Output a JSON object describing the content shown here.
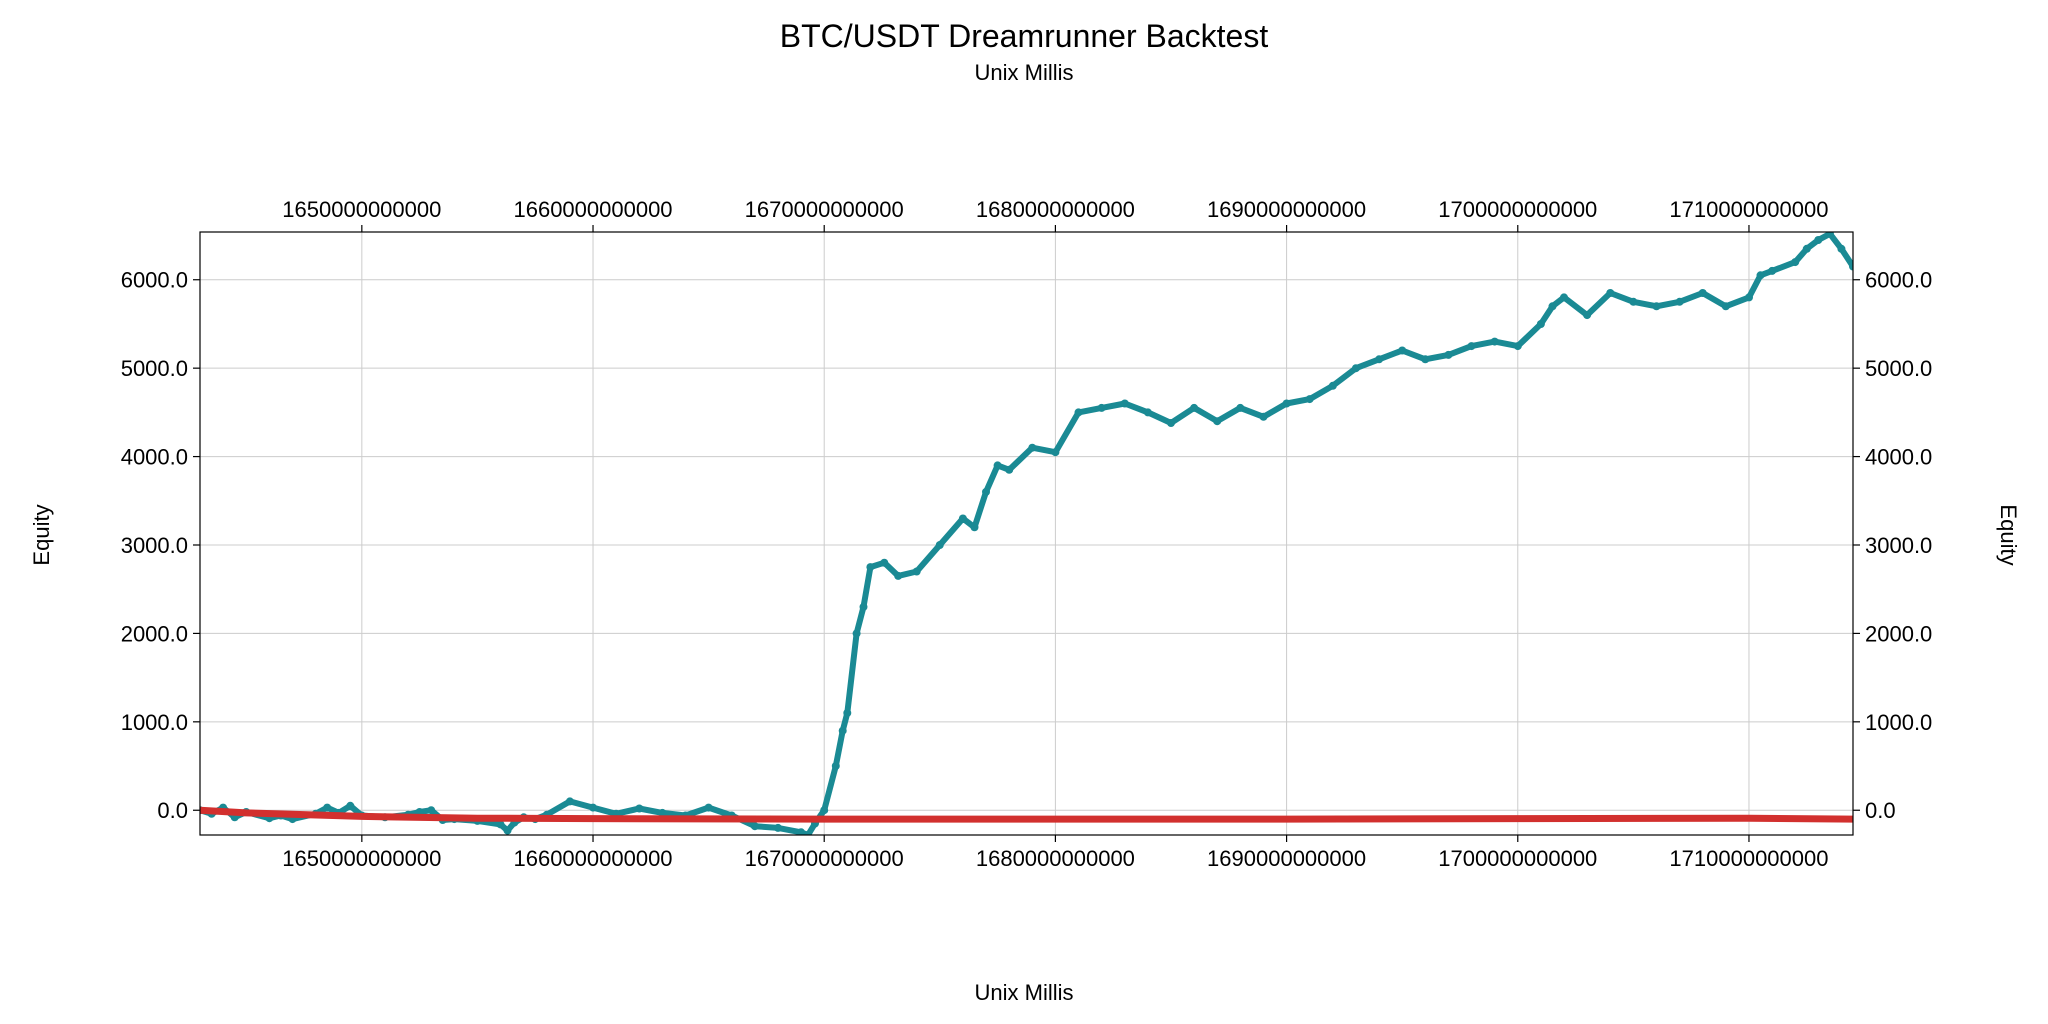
{
  "chart_data": {
    "type": "line",
    "title": "BTC/USDT Dreamrunner Backtest",
    "subtitle": "Unix Millis",
    "xlabel": "Unix Millis",
    "ylabel_left": "Equity",
    "ylabel_right": "Equity",
    "xlim": [
      1643000000000,
      1714500000000
    ],
    "ylim": [
      -280,
      6540
    ],
    "x_ticks": [
      1650000000000,
      1660000000000,
      1670000000000,
      1680000000000,
      1690000000000,
      1700000000000,
      1710000000000
    ],
    "x_tick_labels": [
      "1650000000000",
      "1660000000000",
      "1670000000000",
      "1680000000000",
      "1690000000000",
      "1700000000000",
      "1710000000000"
    ],
    "y_ticks": [
      0,
      1000,
      2000,
      3000,
      4000,
      5000,
      6000
    ],
    "y_tick_labels": [
      "0.0",
      "1000.0",
      "2000.0",
      "3000.0",
      "4000.0",
      "5000.0",
      "6000.0"
    ],
    "grid": true,
    "colors": {
      "equity": "#1a8a94",
      "baseline": "#d2302e",
      "grid": "#cccccc",
      "frame": "#000000"
    },
    "series": [
      {
        "name": "",
        "color": "#1a8a94",
        "style": "dots",
        "x": [
          1643000000000,
          1643500000000,
          1644000000000,
          1644500000000,
          1645000000000,
          1646000000000,
          1646500000000,
          1647000000000,
          1648000000000,
          1648500000000,
          1649000000000,
          1649500000000,
          1650000000000,
          1651000000000,
          1652000000000,
          1652500000000,
          1653000000000,
          1653500000000,
          1654000000000,
          1655000000000,
          1656000000000,
          1656300000000,
          1656600000000,
          1657000000000,
          1657500000000,
          1658000000000,
          1659000000000,
          1660000000000,
          1661000000000,
          1662000000000,
          1663000000000,
          1664000000000,
          1665000000000,
          1666000000000,
          1667000000000,
          1668000000000,
          1669000000000,
          1669300000000,
          1669600000000,
          1670000000000,
          1670500000000,
          1670800000000,
          1671000000000,
          1671400000000,
          1671700000000,
          1672000000000,
          1672600000000,
          1673200000000,
          1674000000000,
          1675000000000,
          1676000000000,
          1676500000000,
          1677000000000,
          1677500000000,
          1678000000000,
          1679000000000,
          1680000000000,
          1681000000000,
          1682000000000,
          1683000000000,
          1684000000000,
          1685000000000,
          1686000000000,
          1687000000000,
          1688000000000,
          1689000000000,
          1690000000000,
          1691000000000,
          1692000000000,
          1693000000000,
          1694000000000,
          1695000000000,
          1696000000000,
          1697000000000,
          1698000000000,
          1699000000000,
          1700000000000,
          1701000000000,
          1701500000000,
          1702000000000,
          1703000000000,
          1704000000000,
          1705000000000,
          1706000000000,
          1707000000000,
          1708000000000,
          1709000000000,
          1710000000000,
          1710500000000,
          1711000000000,
          1712000000000,
          1712500000000,
          1713000000000,
          1713500000000,
          1714000000000,
          1714500000000
        ],
        "y": [
          0,
          -40,
          30,
          -80,
          -20,
          -90,
          -60,
          -100,
          -40,
          30,
          -30,
          50,
          -60,
          -80,
          -50,
          -20,
          0,
          -110,
          -100,
          -120,
          -160,
          -230,
          -140,
          -80,
          -100,
          -50,
          100,
          30,
          -40,
          20,
          -30,
          -60,
          30,
          -60,
          -180,
          -200,
          -250,
          -280,
          -150,
          0,
          500,
          900,
          1100,
          2000,
          2300,
          2750,
          2800,
          2650,
          2700,
          3000,
          3300,
          3200,
          3600,
          3900,
          3850,
          4100,
          4050,
          4500,
          4550,
          4600,
          4500,
          4380,
          4550,
          4400,
          4550,
          4450,
          4600,
          4650,
          4800,
          5000,
          5100,
          5200,
          5100,
          5150,
          5250,
          5300,
          5250,
          5500,
          5700,
          5800,
          5600,
          5850,
          5750,
          5700,
          5750,
          5850,
          5700,
          5800,
          6050,
          6100,
          6200,
          6350,
          6450,
          6520,
          6350,
          6150
        ]
      },
      {
        "name": "",
        "color": "#d2302e",
        "style": "thick-line",
        "x": [
          1643000000000,
          1645000000000,
          1650000000000,
          1655000000000,
          1660000000000,
          1670000000000,
          1680000000000,
          1690000000000,
          1700000000000,
          1710000000000,
          1714500000000
        ],
        "y": [
          0,
          -30,
          -70,
          -90,
          -95,
          -100,
          -100,
          -100,
          -95,
          -90,
          -100
        ]
      }
    ]
  }
}
